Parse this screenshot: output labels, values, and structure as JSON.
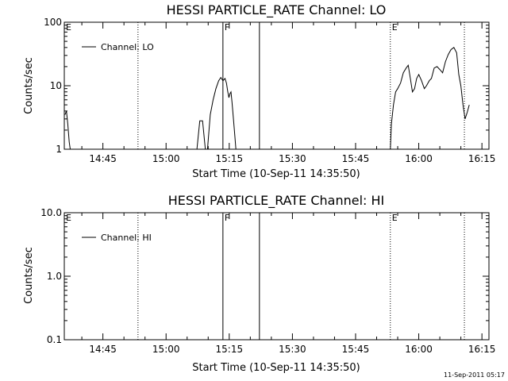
{
  "chart_data": [
    {
      "type": "line",
      "title": "HESSI PARTICLE_RATE Channel: LO",
      "xlabel": "Start Time (10-Sep-11 14:35:50)",
      "ylabel": "Counts/sec",
      "yscale": "log",
      "ylim": [
        1,
        100
      ],
      "xlim": [
        "14:35:50",
        "16:16:40"
      ],
      "x_ticks": [
        "14:45",
        "15:00",
        "15:15",
        "15:30",
        "15:45",
        "16:00",
        "16:15"
      ],
      "y_ticks": [
        "1",
        "10",
        "100"
      ],
      "grid": false,
      "legend": {
        "position": "top-left",
        "entries": [
          "Channel: LO"
        ]
      },
      "series": [
        {
          "name": "Channel: LO",
          "segments": [
            [
              [
                "14:36:00",
                3.5
              ],
              [
                "14:36:20",
                4.0
              ],
              [
                "14:36:40",
                2.5
              ],
              [
                "14:37:00",
                1.3
              ],
              [
                "14:37:15",
                1.0
              ]
            ],
            [
              [
                "15:07:20",
                1.0
              ],
              [
                "15:08:00",
                2.8
              ],
              [
                "15:08:40",
                2.8
              ],
              [
                "15:09:20",
                1.0
              ]
            ],
            [
              [
                "15:09:50",
                1.0
              ],
              [
                "15:10:30",
                3.5
              ],
              [
                "15:11:10",
                6.0
              ],
              [
                "15:11:50",
                9.0
              ],
              [
                "15:12:30",
                12.0
              ],
              [
                "15:13:00",
                13.5
              ],
              [
                "15:13:30",
                12.0
              ],
              [
                "15:14:00",
                13.0
              ],
              [
                "15:14:20",
                11.0
              ],
              [
                "15:14:40",
                8.0
              ],
              [
                "15:14:55",
                6.5
              ],
              [
                "15:15:10",
                7.5
              ],
              [
                "15:15:25",
                8.0
              ],
              [
                "15:15:40",
                5.5
              ],
              [
                "15:16:00",
                3.0
              ],
              [
                "15:16:20",
                1.6
              ],
              [
                "15:16:35",
                1.0
              ]
            ],
            [
              [
                "15:53:15",
                1.0
              ],
              [
                "15:53:30",
                2.5
              ],
              [
                "15:54:00",
                5.0
              ],
              [
                "15:54:30",
                8.0
              ],
              [
                "15:55:00",
                9.0
              ],
              [
                "15:55:40",
                11.0
              ],
              [
                "15:56:20",
                16.0
              ],
              [
                "15:57:00",
                19.0
              ],
              [
                "15:57:30",
                21.0
              ],
              [
                "15:58:00",
                13.0
              ],
              [
                "15:58:30",
                8.0
              ],
              [
                "15:59:00",
                9.0
              ],
              [
                "15:59:30",
                13.0
              ],
              [
                "16:00:00",
                15.0
              ],
              [
                "16:00:40",
                12.0
              ],
              [
                "16:01:20",
                9.0
              ],
              [
                "16:01:50",
                10.0
              ],
              [
                "16:02:30",
                12.0
              ],
              [
                "16:03:00",
                13.0
              ],
              [
                "16:03:40",
                19.0
              ],
              [
                "16:04:20",
                20.0
              ],
              [
                "16:05:00",
                18.0
              ],
              [
                "16:05:40",
                16.0
              ],
              [
                "16:06:20",
                24.0
              ],
              [
                "16:07:00",
                31.0
              ],
              [
                "16:07:40",
                37.0
              ],
              [
                "16:08:20",
                40.0
              ],
              [
                "16:09:00",
                33.0
              ],
              [
                "16:09:30",
                15.0
              ],
              [
                "16:10:00",
                10.0
              ],
              [
                "16:10:30",
                5.0
              ],
              [
                "16:11:00",
                3.0
              ],
              [
                "16:11:30",
                3.8
              ],
              [
                "16:12:00",
                5.0
              ]
            ]
          ]
        }
      ],
      "vertical_markers": [
        {
          "x": "14:53:20",
          "style": "dotted",
          "label": ""
        },
        {
          "x": "15:13:30",
          "style": "solid",
          "label": "F"
        },
        {
          "x": "15:22:10",
          "style": "solid",
          "label": ""
        },
        {
          "x": "15:53:15",
          "style": "dotted",
          "label": "E"
        },
        {
          "x": "16:10:50",
          "style": "dotted",
          "label": ""
        }
      ],
      "corner_label": "E"
    },
    {
      "type": "line",
      "title": "HESSI PARTICLE_RATE Channel: HI",
      "xlabel": "Start Time (10-Sep-11 14:35:50)",
      "ylabel": "Counts/sec",
      "yscale": "log",
      "ylim": [
        0.1,
        10
      ],
      "xlim": [
        "14:35:50",
        "16:16:40"
      ],
      "x_ticks": [
        "14:45",
        "15:00",
        "15:15",
        "15:30",
        "15:45",
        "16:00",
        "16:15"
      ],
      "y_ticks": [
        "0.1",
        "1.0",
        "10.0"
      ],
      "grid": false,
      "legend": {
        "position": "top-left",
        "entries": [
          "Channel: HI"
        ]
      },
      "series": [
        {
          "name": "Channel: HI",
          "segments": []
        }
      ],
      "vertical_markers": [
        {
          "x": "14:53:20",
          "style": "dotted",
          "label": ""
        },
        {
          "x": "15:13:30",
          "style": "solid",
          "label": "F"
        },
        {
          "x": "15:22:10",
          "style": "solid",
          "label": ""
        },
        {
          "x": "15:53:15",
          "style": "dotted",
          "label": "E"
        },
        {
          "x": "16:10:50",
          "style": "dotted",
          "label": ""
        }
      ],
      "corner_label": "E"
    }
  ],
  "timestamp": "11-Sep-2011 05:17"
}
